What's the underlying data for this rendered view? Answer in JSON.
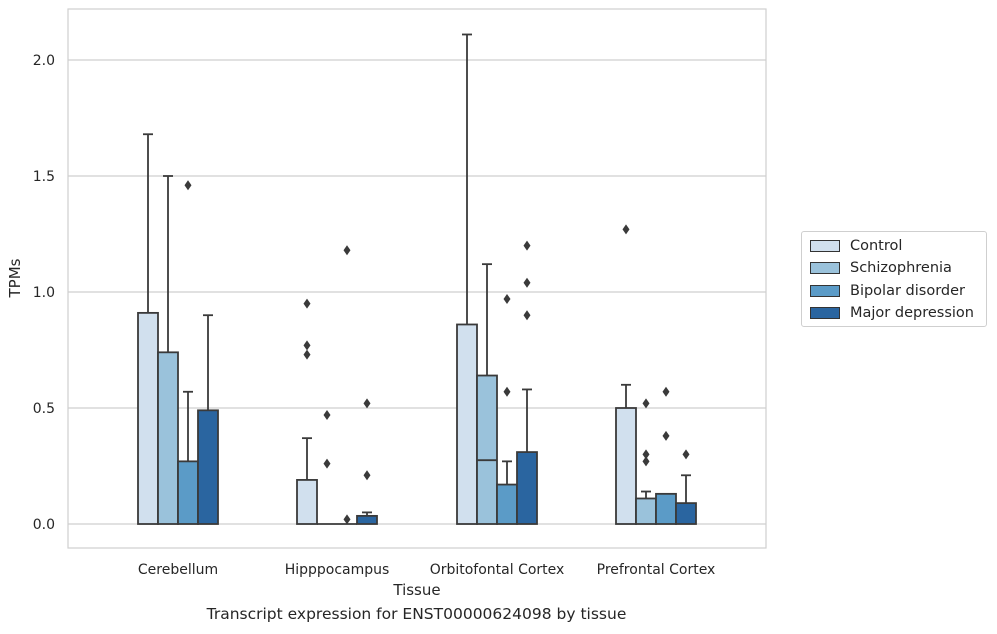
{
  "chart_data": {
    "type": "bar",
    "caption": "Transcript expression for ENST00000624098 by tissue",
    "xlabel": "Tissue",
    "ylabel": "TPMs",
    "ylim": [
      -0.1,
      2.22
    ],
    "yticks": [
      0.0,
      0.5,
      1.0,
      1.5,
      2.0
    ],
    "ytick_labels": [
      "0.0",
      "0.5",
      "1.0",
      "1.5",
      "2.0"
    ],
    "grid": "horizontal",
    "legend_placement": "right",
    "categories": [
      "Cerebellum",
      "Hipppocampus",
      "Orbitofontal Cortex",
      "Prefrontal Cortex"
    ],
    "series": [
      {
        "name": "Control",
        "color": "#d1e0ee",
        "q3": [
          0.91,
          0.19,
          0.86,
          0.5
        ],
        "median": [
          0.0,
          0.0,
          0.0,
          0.0
        ],
        "whisker_high": [
          1.68,
          0.37,
          2.11,
          0.6
        ],
        "outliers": [
          [],
          [
            0.95,
            0.77,
            0.73
          ],
          [],
          [
            1.27
          ]
        ]
      },
      {
        "name": "Schizophrenia",
        "color": "#9ac2db",
        "q3": [
          0.74,
          0.0,
          0.64,
          0.11
        ],
        "median": [
          0.0,
          0.0,
          0.275,
          0.0
        ],
        "whisker_high": [
          1.5,
          0.0,
          1.12,
          0.14
        ],
        "outliers": [
          [],
          [
            0.47,
            0.26
          ],
          [],
          [
            0.52,
            0.3,
            0.27
          ]
        ]
      },
      {
        "name": "Bipolar disorder",
        "color": "#5b9bc7",
        "q3": [
          0.27,
          0.0,
          0.17,
          0.13
        ],
        "median": [
          0.0,
          0.0,
          0.0,
          0.0
        ],
        "whisker_high": [
          0.57,
          0.0,
          0.27,
          0.13
        ],
        "outliers": [
          [
            1.46
          ],
          [
            1.18,
            0.02
          ],
          [
            0.97,
            0.57
          ],
          [
            0.57,
            0.38
          ]
        ]
      },
      {
        "name": "Major depression",
        "color": "#2a65a0",
        "q3": [
          0.49,
          0.035,
          0.31,
          0.09
        ],
        "median": [
          0.0,
          0.0,
          0.0,
          0.0
        ],
        "whisker_high": [
          0.9,
          0.05,
          0.58,
          0.21
        ],
        "outliers": [
          [],
          [
            0.52,
            0.21
          ],
          [
            1.2,
            1.04,
            0.9
          ],
          [
            0.3
          ]
        ]
      }
    ]
  }
}
